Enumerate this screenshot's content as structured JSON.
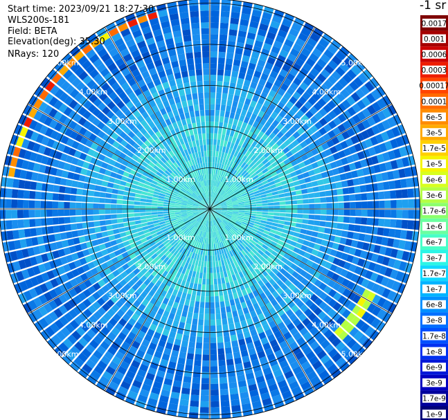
{
  "header": {
    "start_time": "Start time: 2023/09/21 18:27:30",
    "instrument": "WLS200s-181",
    "field": "Field: BETA",
    "elevation": "Elevation(deg): 35.30",
    "nrays": "NRays: 120"
  },
  "colorbar": {
    "unit": "-1 sr",
    "labels": [
      "0.0017",
      "0.001",
      "0.0006",
      "0.0003",
      "0.00017",
      "0.0001",
      "6e-5",
      "3e-5",
      "1.7e-5",
      "1e-5",
      "6e-6",
      "3e-6",
      "1.7e-6",
      "1e-6",
      "6e-7",
      "3e-7",
      "1.7e-7",
      "1e-7",
      "6e-8",
      "3e-8",
      "1.7e-8",
      "1e-8",
      "6e-9",
      "3e-9",
      "1.7e-9",
      "1e-9"
    ],
    "colors": [
      "#7f0000",
      "#a50000",
      "#cc0000",
      "#ee1c00",
      "#ff4500",
      "#ff6a00",
      "#ff8c00",
      "#ffaa00",
      "#ffd000",
      "#f5f500",
      "#d8ff1e",
      "#b4ff44",
      "#8cff6c",
      "#6affa0",
      "#48ffc8",
      "#2cf5e6",
      "#10d8ff",
      "#00b4ff",
      "#0090ff",
      "#0070ff",
      "#0050ff",
      "#0030f0",
      "#0018d8",
      "#0000c0",
      "#00009c",
      "#000078"
    ]
  },
  "chart_data": {
    "type": "heatmap",
    "title": "",
    "projection": "polar PPI",
    "variable": "BETA",
    "n_rays": 120,
    "range_rings_km": [
      1,
      2,
      3,
      4,
      5
    ],
    "ring_labels": [
      "1.00km",
      "2.00km",
      "3.00km",
      "4.00km",
      "5.00km"
    ],
    "azimuth_spokes_deg": [
      0,
      30,
      60,
      90,
      120,
      150,
      180,
      210,
      240,
      270,
      300,
      330
    ],
    "max_range_km": 5.1,
    "features": [
      {
        "description": "high backscatter arc",
        "range_km": 4.9,
        "azimuth_deg": [
          280,
          345
        ],
        "peak_value": 0.0003
      },
      {
        "description": "high backscatter arc",
        "range_km": 4.4,
        "azimuth_deg": [
          118,
          136
        ],
        "peak_value": 1e-05
      }
    ]
  }
}
